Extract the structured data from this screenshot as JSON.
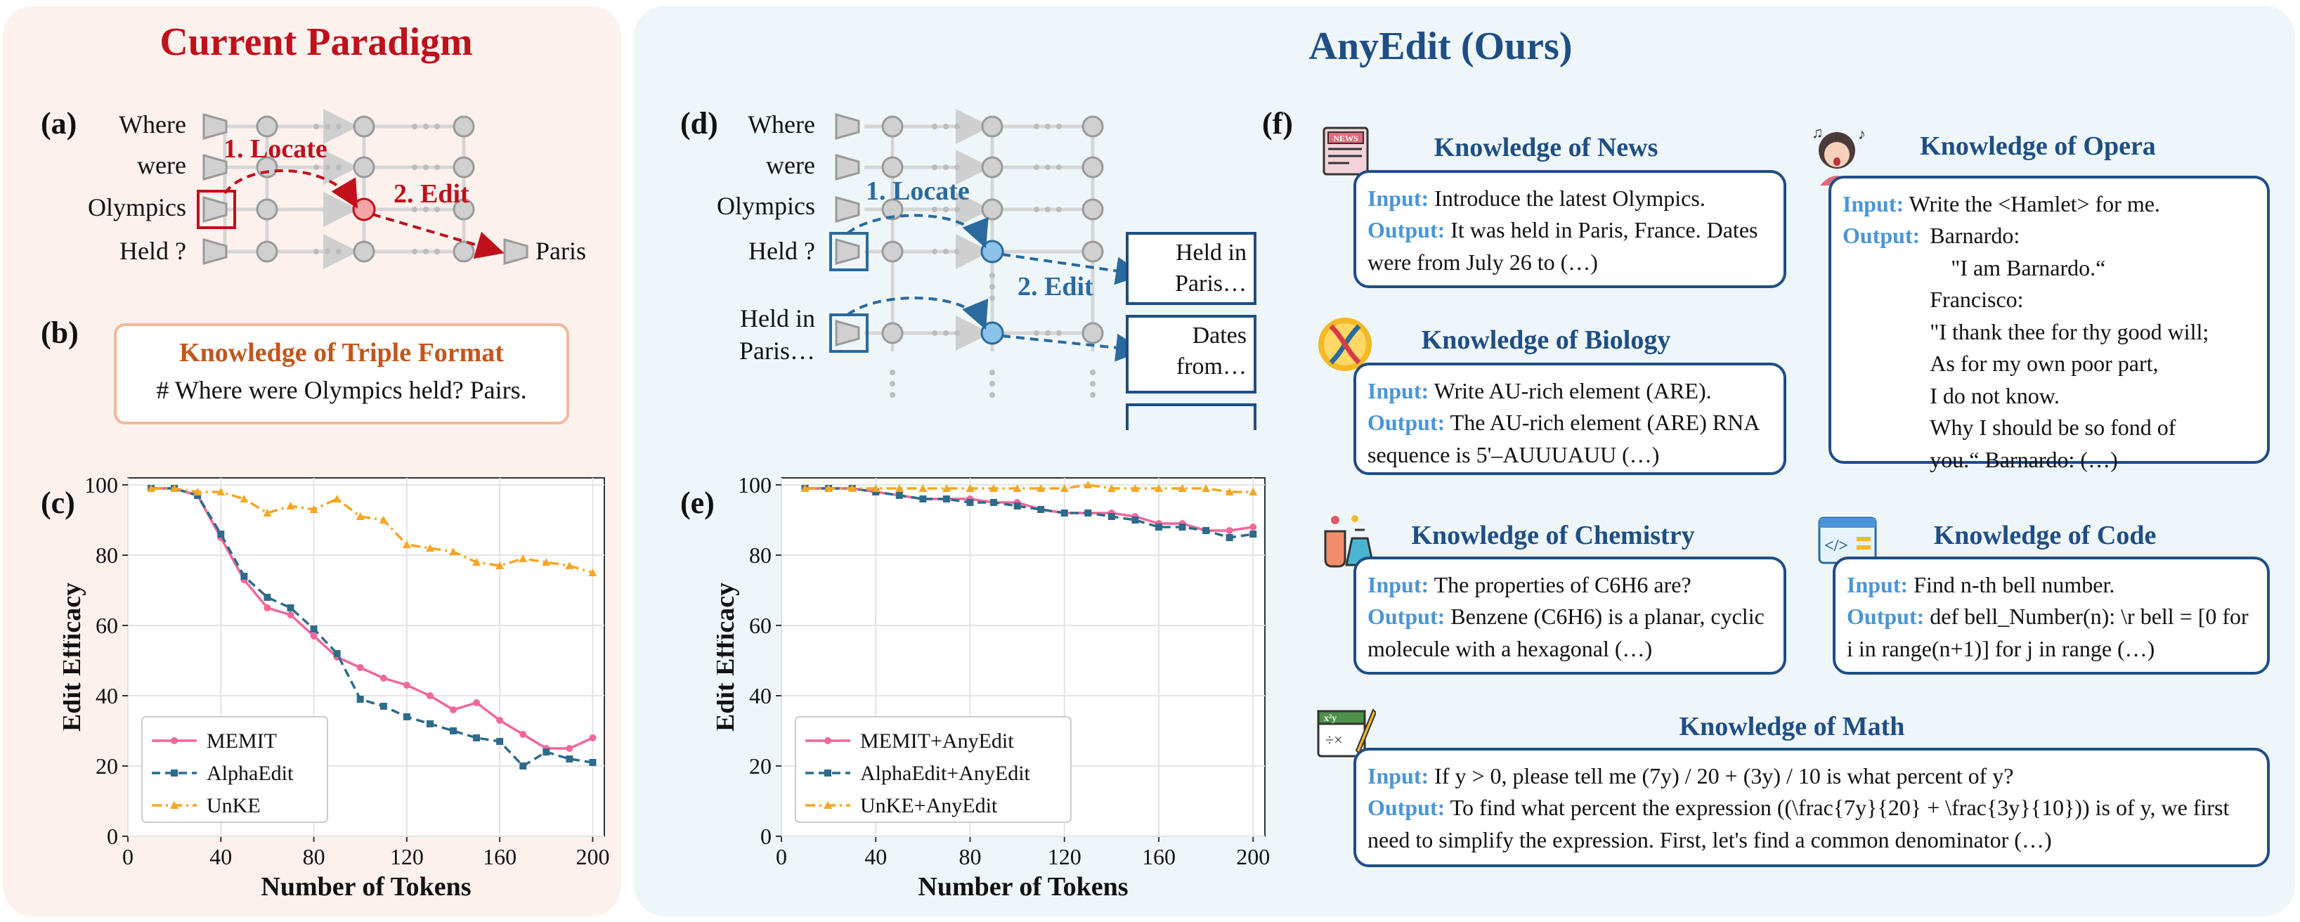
{
  "left_title": "Current Paradigm",
  "right_title": "AnyEdit (Ours)",
  "panel_a": {
    "tag": "(a)",
    "words": [
      "Where",
      "were",
      "Olympics",
      "Held ?"
    ],
    "locate": "1. Locate",
    "edit": "2. Edit",
    "output": "Paris"
  },
  "panel_b": {
    "tag": "(b)",
    "box_title": "Knowledge of Triple Format",
    "box_text": "# Where were Olympics held? Pairs."
  },
  "panel_d": {
    "tag": "(d)",
    "words": [
      "Where",
      "were",
      "Olympics",
      "Held ?",
      "Held in",
      "Paris…"
    ],
    "locate": "1. Locate",
    "edit": "2. Edit",
    "outputs": [
      [
        "Held in",
        "Paris…"
      ],
      [
        "Dates",
        "from…"
      ]
    ]
  },
  "panel_f": {
    "tag": "(f)",
    "cards": {
      "news": {
        "title": "Knowledge of News",
        "input_label": "Input:",
        "input": "Introduce the latest Olympics.",
        "output_label": "Output:",
        "output": "It was held in Paris, France. Dates were from July 26 to (…)"
      },
      "biology": {
        "title": "Knowledge of Biology",
        "input_label": "Input:",
        "input": "Write AU-rich element (ARE).",
        "output_label": "Output:",
        "output": "The AU-rich element (ARE) RNA sequence is 5'–AUUUAUU (…)"
      },
      "chemistry": {
        "title": "Knowledge of Chemistry",
        "input_label": "Input:",
        "input": "The properties of C6H6 are?",
        "output_label": "Output:",
        "output": "Benzene (C6H6) is a planar, cyclic molecule with a hexagonal (…)"
      },
      "opera": {
        "title": "Knowledge of Opera",
        "input_label": "Input:",
        "input": "Write the <Hamlet> for me.",
        "output_label": "Output:",
        "output_lines": [
          "Barnardo:",
          "\"I am Barnardo.“",
          "Francisco:",
          "\"I thank thee for thy good will;",
          "As for my own poor part,",
          "I do not know.",
          "Why I should be so fond of",
          "you.“ Barnardo: (…)"
        ]
      },
      "code": {
        "title": "Knowledge of Code",
        "input_label": "Input:",
        "input": "Find n-th bell number.",
        "output_label": "Output:",
        "output": "def bell_Number(n): \\r bell = [0 for i in range(n+1)] for j in range (…)"
      },
      "math": {
        "title": "Knowledge of Math",
        "input_label": "Input:",
        "input": "If y > 0, please tell me (7y) / 20 + (3y) / 10 is what percent of y?",
        "output_label": "Output:",
        "output": "To find what percent the expression ((\\frac{7y}{20} + \\frac{3y}{10})) is of y, we first need to simplify the expression. First, let's find a common denominator (…)"
      }
    }
  },
  "colors": {
    "red": "#c0101b",
    "blue": "#2b6a9d",
    "pink": "#f0679a",
    "teal": "#2e6b8a",
    "orange": "#f5a623"
  },
  "chart_data": [
    {
      "type": "line",
      "panel_tag": "(c)",
      "xlabel": "Number of Tokens",
      "ylabel": "Edit Efficacy",
      "xlim": [
        0,
        205
      ],
      "ylim": [
        0,
        102
      ],
      "xticks": [
        0,
        40,
        80,
        120,
        160,
        200
      ],
      "yticks": [
        0,
        20,
        40,
        60,
        80,
        100
      ],
      "grid": true,
      "legend": "bottom-left",
      "x": [
        10,
        20,
        30,
        40,
        50,
        60,
        70,
        80,
        90,
        100,
        110,
        120,
        130,
        140,
        150,
        160,
        170,
        180,
        190,
        200
      ],
      "series": [
        {
          "name": "MEMIT",
          "color": "#f0679a",
          "style": "solid",
          "marker": "circle",
          "values": [
            99,
            99,
            97,
            85,
            73,
            65,
            63,
            57,
            51,
            48,
            45,
            43,
            40,
            36,
            38,
            33,
            29,
            25,
            25,
            28
          ]
        },
        {
          "name": "AlphaEdit",
          "color": "#2e6b8a",
          "style": "dashed",
          "marker": "square",
          "values": [
            99,
            99,
            97,
            86,
            74,
            68,
            65,
            59,
            52,
            39,
            37,
            34,
            32,
            30,
            28,
            27,
            20,
            24,
            22,
            21
          ]
        },
        {
          "name": "UnKE",
          "color": "#f5a623",
          "style": "dashdot",
          "marker": "triangle",
          "values": [
            99,
            99,
            98,
            98,
            96,
            92,
            94,
            93,
            96,
            91,
            90,
            83,
            82,
            81,
            78,
            77,
            79,
            78,
            77,
            75
          ]
        }
      ]
    },
    {
      "type": "line",
      "panel_tag": "(e)",
      "xlabel": "Number of Tokens",
      "ylabel": "Edit Efficacy",
      "xlim": [
        0,
        205
      ],
      "ylim": [
        0,
        102
      ],
      "xticks": [
        0,
        40,
        80,
        120,
        160,
        200
      ],
      "yticks": [
        0,
        20,
        40,
        60,
        80,
        100
      ],
      "grid": true,
      "legend": "bottom-left",
      "x": [
        10,
        20,
        30,
        40,
        50,
        60,
        70,
        80,
        90,
        100,
        110,
        120,
        130,
        140,
        150,
        160,
        170,
        180,
        190,
        200
      ],
      "series": [
        {
          "name": "MEMIT+AnyEdit",
          "color": "#f0679a",
          "style": "solid",
          "marker": "circle",
          "values": [
            99,
            99,
            99,
            98,
            97,
            96,
            96,
            96,
            95,
            95,
            93,
            92,
            92,
            92,
            91,
            89,
            89,
            87,
            87,
            88
          ]
        },
        {
          "name": "AlphaEdit+AnyEdit",
          "color": "#2e6b8a",
          "style": "dashed",
          "marker": "square",
          "values": [
            99,
            99,
            99,
            98,
            97,
            96,
            96,
            95,
            95,
            94,
            93,
            92,
            92,
            91,
            90,
            88,
            88,
            87,
            85,
            86
          ]
        },
        {
          "name": "UnKE+AnyEdit",
          "color": "#f5a623",
          "style": "dashdot",
          "marker": "triangle",
          "values": [
            99,
            99,
            99,
            99,
            99,
            99,
            99,
            99,
            99,
            99,
            99,
            99,
            100,
            99,
            99,
            99,
            99,
            99,
            98,
            98
          ]
        }
      ]
    }
  ]
}
